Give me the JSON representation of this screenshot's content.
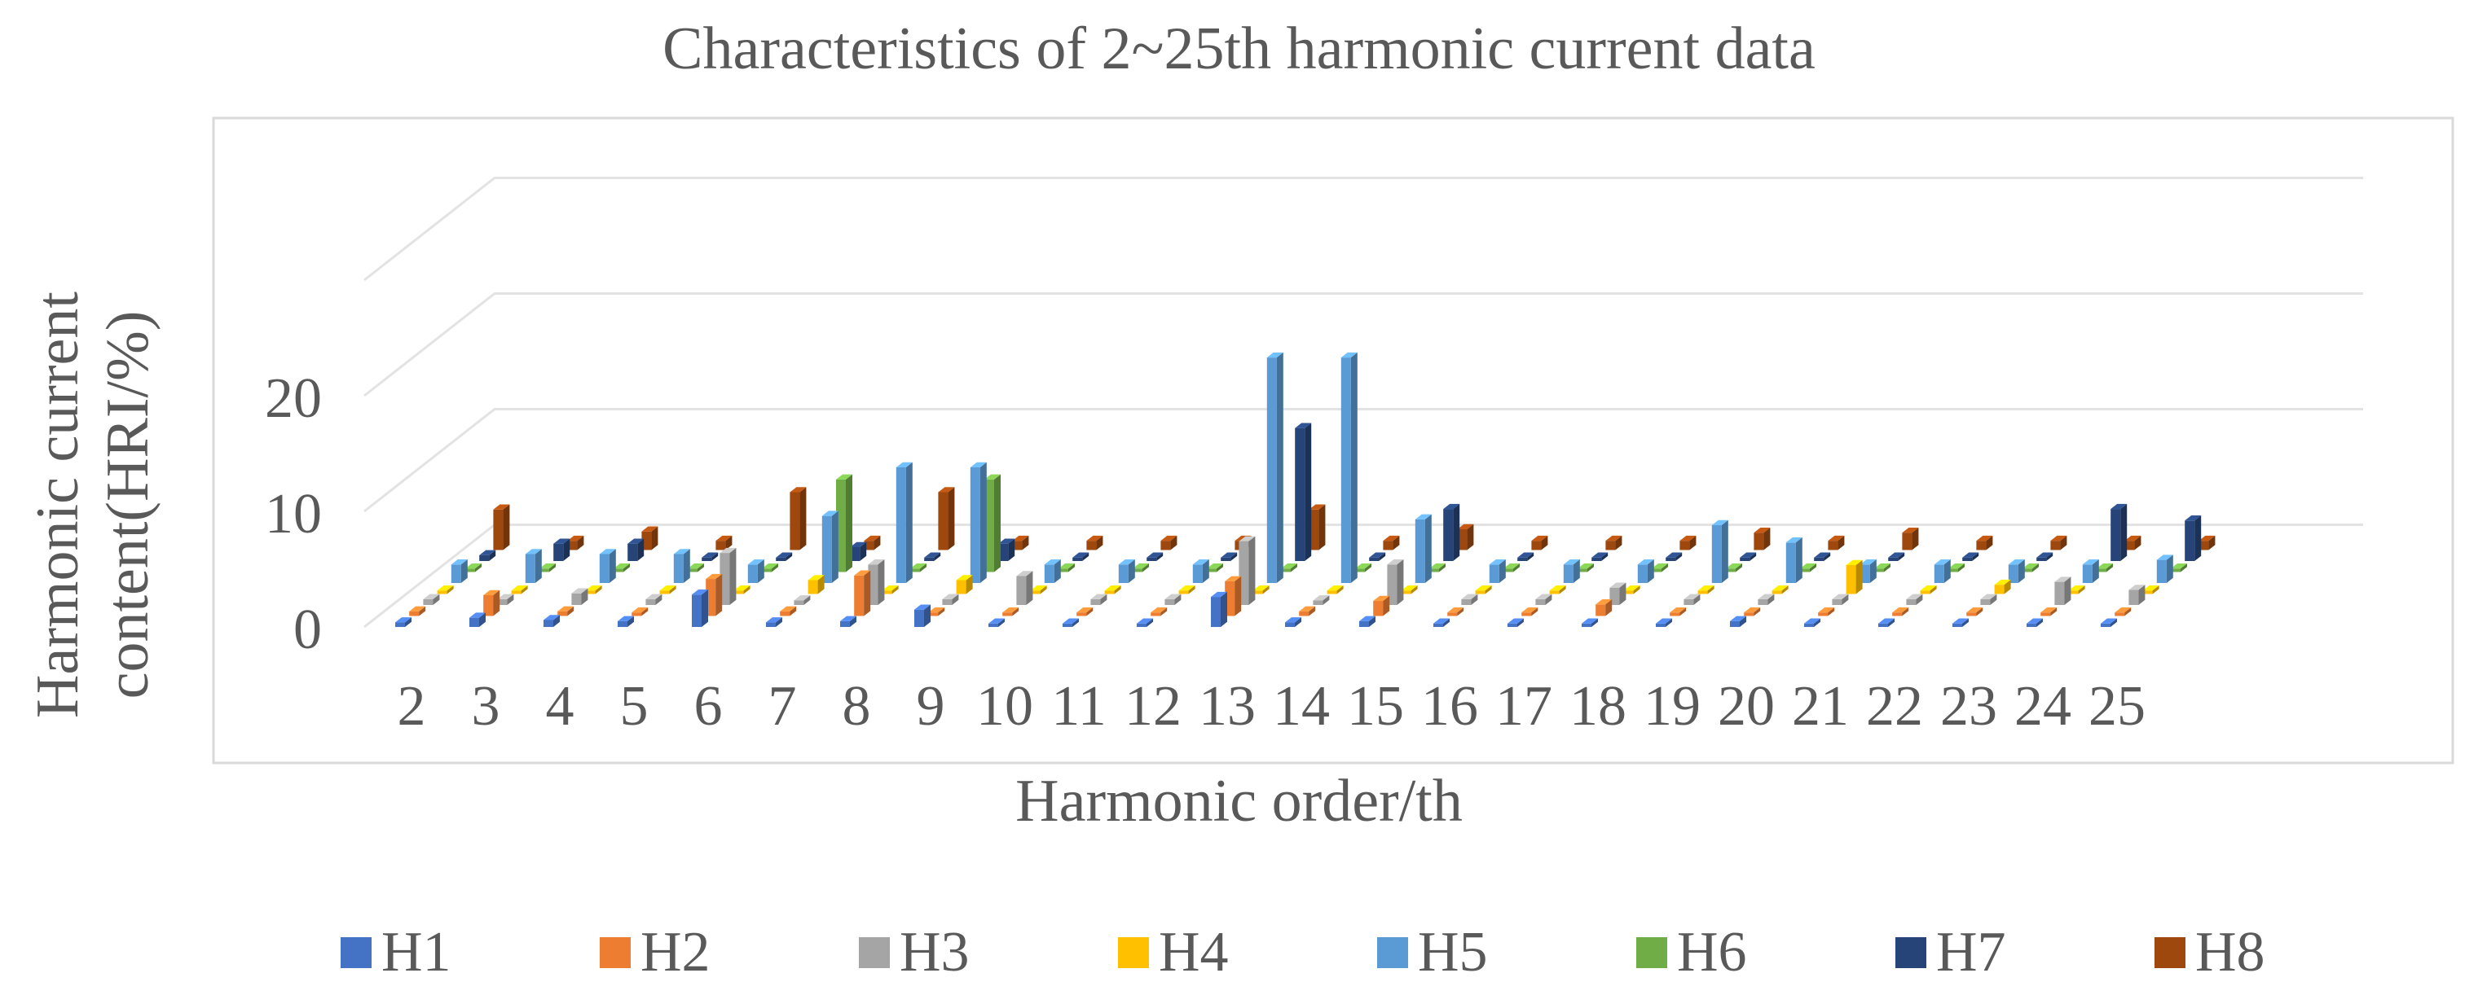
{
  "title": "Characteristics of 2~25th harmonic current data",
  "chart_data": {
    "type": "bar",
    "subtype": "3d-column",
    "title": "Characteristics of 2~25th harmonic current data",
    "xlabel": "Harmonic order/th",
    "ylabel": "Harmonic current content(HRI/%)",
    "ylim": [
      0,
      30
    ],
    "yticks": [
      0,
      10,
      20
    ],
    "grid": true,
    "legend_position": "bottom",
    "categories": [
      "2",
      "3",
      "4",
      "5",
      "6",
      "7",
      "8",
      "9",
      "10",
      "11",
      "12",
      "13",
      "14",
      "15",
      "16",
      "17",
      "18",
      "19",
      "20",
      "21",
      "22",
      "23",
      "24",
      "25"
    ],
    "series": [
      {
        "name": "H1",
        "color": "#4472C4",
        "values": [
          0.4,
          0.8,
          0.6,
          0.5,
          2.8,
          0.4,
          0.5,
          1.5,
          0.3,
          0.3,
          0.3,
          2.6,
          0.4,
          0.5,
          0.3,
          0.3,
          0.3,
          0.3,
          0.5,
          0.3,
          0.3,
          0.3,
          0.3,
          0.3
        ]
      },
      {
        "name": "H2",
        "color": "#ED7D31",
        "values": [
          0.4,
          1.8,
          0.4,
          0.3,
          3.2,
          0.4,
          3.5,
          0.3,
          0.3,
          0.3,
          0.3,
          3.0,
          0.4,
          1.3,
          0.3,
          0.3,
          1.0,
          0.3,
          0.3,
          0.3,
          0.3,
          0.3,
          0.3,
          0.3
        ]
      },
      {
        "name": "H3",
        "color": "#A5A5A5",
        "values": [
          0.5,
          0.5,
          1.0,
          0.5,
          4.5,
          0.4,
          3.5,
          0.5,
          2.5,
          0.5,
          0.5,
          5.5,
          0.4,
          3.5,
          0.5,
          0.5,
          1.5,
          0.5,
          0.5,
          0.5,
          0.5,
          0.5,
          2.0,
          1.3
        ]
      },
      {
        "name": "H4",
        "color": "#FFC000",
        "values": [
          0.3,
          0.3,
          0.3,
          0.3,
          0.3,
          1.2,
          0.3,
          1.2,
          0.3,
          0.3,
          0.3,
          0.3,
          0.3,
          0.3,
          0.3,
          0.3,
          0.3,
          0.3,
          0.3,
          2.5,
          0.3,
          0.8,
          0.3,
          0.3
        ]
      },
      {
        "name": "H5",
        "color": "#5B9BD5",
        "values": [
          1.6,
          2.5,
          2.5,
          2.5,
          1.6,
          5.8,
          10.0,
          10.0,
          1.6,
          1.6,
          1.6,
          19.5,
          19.5,
          5.5,
          1.6,
          1.6,
          1.6,
          5.0,
          3.5,
          1.6,
          1.6,
          1.6,
          1.6,
          2.0
        ]
      },
      {
        "name": "H6",
        "color": "#70AD47",
        "values": [
          0.3,
          0.3,
          0.3,
          0.3,
          0.3,
          8.0,
          0.3,
          8.0,
          0.3,
          0.3,
          0.3,
          0.3,
          0.3,
          0.3,
          0.3,
          0.3,
          0.3,
          0.3,
          0.3,
          0.3,
          0.3,
          0.3,
          0.3,
          0.3
        ]
      },
      {
        "name": "H7",
        "color": "#264478",
        "values": [
          0.5,
          1.5,
          1.5,
          0.3,
          0.3,
          1.2,
          0.3,
          1.5,
          0.3,
          0.3,
          0.3,
          11.5,
          0.3,
          4.5,
          0.3,
          0.3,
          0.3,
          0.3,
          0.3,
          0.3,
          0.3,
          0.3,
          4.5,
          3.5
        ]
      },
      {
        "name": "H8",
        "color": "#9E480E",
        "values": [
          3.5,
          0.8,
          1.6,
          0.8,
          5.0,
          0.8,
          5.0,
          0.8,
          0.8,
          0.8,
          0.8,
          3.5,
          0.8,
          1.8,
          0.8,
          0.8,
          0.8,
          1.5,
          0.8,
          1.5,
          0.8,
          0.8,
          0.8,
          0.8
        ]
      }
    ]
  }
}
